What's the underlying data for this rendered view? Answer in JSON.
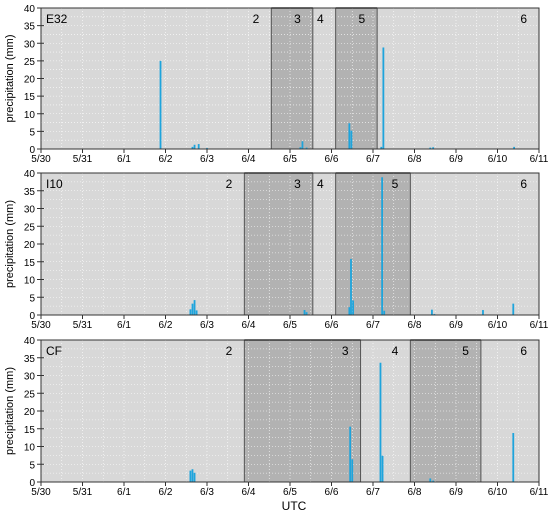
{
  "figure": {
    "xlabel": "UTC"
  },
  "chart_data": [
    {
      "type": "bar",
      "station": "E32",
      "ylabel": "precipitation (mm)",
      "ylim": [
        0,
        40
      ],
      "yticks": [
        0,
        5,
        10,
        15,
        20,
        25,
        30,
        35,
        40
      ],
      "xlim": [
        0,
        12
      ],
      "xtick_labels": [
        "5/30",
        "5/31",
        "6/1",
        "6/2",
        "6/3",
        "6/4",
        "6/5",
        "6/6",
        "6/7",
        "6/8",
        "6/9",
        "6/10",
        "6/11"
      ],
      "grid": true,
      "periods": [
        {
          "label": "2",
          "start": 0,
          "end": 5.55,
          "shade": "light"
        },
        {
          "label": "3",
          "start": 5.55,
          "end": 6.55,
          "shade": "dark"
        },
        {
          "label": "4",
          "start": 6.55,
          "end": 7.1,
          "shade": "light"
        },
        {
          "label": "5",
          "start": 7.1,
          "end": 8.1,
          "shade": "dark"
        },
        {
          "label": "6",
          "start": 8.1,
          "end": 12,
          "shade": "light"
        }
      ],
      "bars": [
        {
          "t": 2.88,
          "v": 25
        },
        {
          "t": 3.65,
          "v": 0.6
        },
        {
          "t": 3.7,
          "v": 1.2
        },
        {
          "t": 3.8,
          "v": 1.4
        },
        {
          "t": 4.0,
          "v": 0.3
        },
        {
          "t": 6.25,
          "v": 0.5
        },
        {
          "t": 6.3,
          "v": 2.2
        },
        {
          "t": 6.4,
          "v": 0.4
        },
        {
          "t": 7.43,
          "v": 7.3
        },
        {
          "t": 7.48,
          "v": 5.2
        },
        {
          "t": 8.2,
          "v": 0.6
        },
        {
          "t": 8.25,
          "v": 28.8
        },
        {
          "t": 9.38,
          "v": 0.4
        },
        {
          "t": 9.45,
          "v": 0.5
        },
        {
          "t": 11.4,
          "v": 0.6
        }
      ]
    },
    {
      "type": "bar",
      "station": "I10",
      "ylabel": "precipitation (mm)",
      "ylim": [
        0,
        40
      ],
      "yticks": [
        0,
        5,
        10,
        15,
        20,
        25,
        30,
        35,
        40
      ],
      "xlim": [
        0,
        12
      ],
      "xtick_labels": [
        "5/30",
        "5/31",
        "6/1",
        "6/2",
        "6/3",
        "6/4",
        "6/5",
        "6/6",
        "6/7",
        "6/8",
        "6/9",
        "6/10",
        "6/11"
      ],
      "grid": true,
      "periods": [
        {
          "label": "2",
          "start": 0,
          "end": 4.9,
          "shade": "light"
        },
        {
          "label": "3",
          "start": 4.9,
          "end": 6.55,
          "shade": "dark"
        },
        {
          "label": "4",
          "start": 6.55,
          "end": 7.1,
          "shade": "light"
        },
        {
          "label": "5",
          "start": 7.1,
          "end": 8.9,
          "shade": "dark"
        },
        {
          "label": "6",
          "start": 8.9,
          "end": 12,
          "shade": "light"
        }
      ],
      "bars": [
        {
          "t": 3.6,
          "v": 1.6
        },
        {
          "t": 3.65,
          "v": 3.2
        },
        {
          "t": 3.7,
          "v": 4.2
        },
        {
          "t": 3.75,
          "v": 1.3
        },
        {
          "t": 6.35,
          "v": 1.4
        },
        {
          "t": 6.4,
          "v": 0.8
        },
        {
          "t": 7.43,
          "v": 2.2
        },
        {
          "t": 7.47,
          "v": 15.8
        },
        {
          "t": 7.52,
          "v": 4.1
        },
        {
          "t": 8.22,
          "v": 38.8
        },
        {
          "t": 8.27,
          "v": 1.2
        },
        {
          "t": 9.42,
          "v": 1.5
        },
        {
          "t": 9.48,
          "v": 0.3
        },
        {
          "t": 10.65,
          "v": 1.4
        },
        {
          "t": 11.38,
          "v": 3.2
        }
      ]
    },
    {
      "type": "bar",
      "station": "CF",
      "ylabel": "precipitation (mm)",
      "ylim": [
        0,
        40
      ],
      "yticks": [
        0,
        5,
        10,
        15,
        20,
        25,
        30,
        35,
        40
      ],
      "xlim": [
        0,
        12
      ],
      "xtick_labels": [
        "5/30",
        "5/31",
        "6/1",
        "6/2",
        "6/3",
        "6/4",
        "6/5",
        "6/6",
        "6/7",
        "6/8",
        "6/9",
        "6/10",
        "6/11"
      ],
      "grid": true,
      "periods": [
        {
          "label": "2",
          "start": 0,
          "end": 4.9,
          "shade": "light"
        },
        {
          "label": "3",
          "start": 4.9,
          "end": 7.7,
          "shade": "dark"
        },
        {
          "label": "4",
          "start": 7.7,
          "end": 8.9,
          "shade": "light"
        },
        {
          "label": "5",
          "start": 8.9,
          "end": 10.6,
          "shade": "dark"
        },
        {
          "label": "6",
          "start": 10.6,
          "end": 12,
          "shade": "light"
        }
      ],
      "bars": [
        {
          "t": 3.6,
          "v": 3.2
        },
        {
          "t": 3.65,
          "v": 3.6
        },
        {
          "t": 3.7,
          "v": 2.6
        },
        {
          "t": 7.45,
          "v": 15.6
        },
        {
          "t": 7.5,
          "v": 6.4
        },
        {
          "t": 8.18,
          "v": 33.6
        },
        {
          "t": 8.23,
          "v": 7.4
        },
        {
          "t": 9.38,
          "v": 1.0
        },
        {
          "t": 9.45,
          "v": 0.4
        },
        {
          "t": 11.38,
          "v": 13.8
        }
      ]
    }
  ]
}
